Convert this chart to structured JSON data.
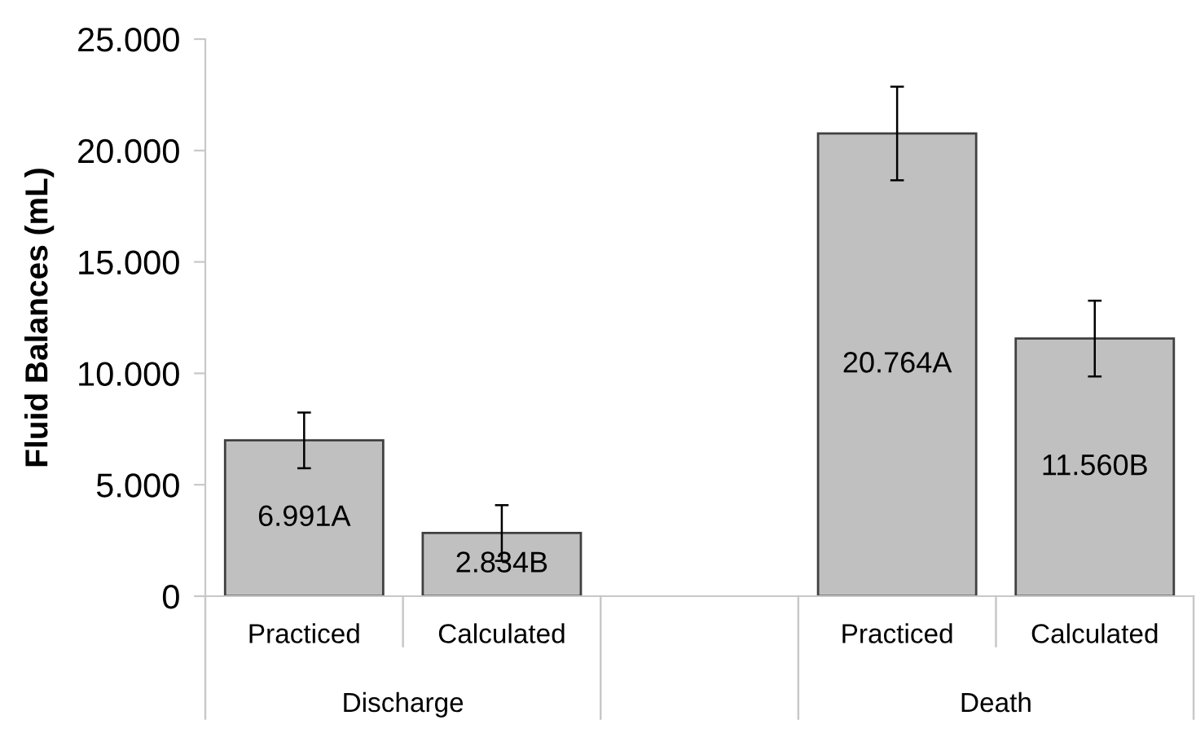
{
  "chart_data": {
    "type": "bar",
    "ylabel": "Fluid Balances (mL)",
    "categories": [
      "Practiced",
      "Calculated",
      null,
      "Practiced",
      "Calculated"
    ],
    "series": [
      {
        "color": "#c0c0c0",
        "values": [
          6991,
          2834,
          null,
          20764,
          11560
        ],
        "errors": [
          1250,
          1250,
          null,
          2100,
          1700
        ],
        "value_labels": [
          "6.991A",
          "2.834B",
          null,
          "20.764A",
          "11.560B"
        ]
      }
    ],
    "annotations": [
      "Discharge",
      "Death"
    ],
    "ylim": [
      0,
      25000
    ],
    "yticks": [
      {
        "value": 0,
        "label": "0"
      },
      {
        "value": 5000,
        "label": "5.000"
      },
      {
        "value": 10000,
        "label": "10.000"
      },
      {
        "value": 15000,
        "label": "15.000"
      },
      {
        "value": 20000,
        "label": "20.000"
      },
      {
        "value": 25000,
        "label": "25.000"
      }
    ],
    "grid": false,
    "legend": false
  }
}
